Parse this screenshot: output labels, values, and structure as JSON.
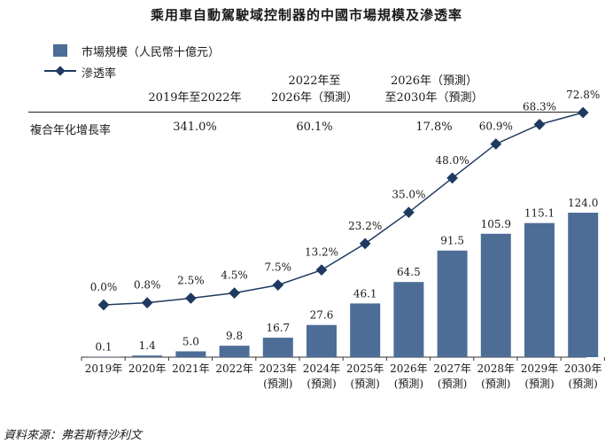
{
  "chart_data": {
    "type": "bar+line",
    "title": "乘用車自動駕駛域控制器的中國市場規模及滲透率",
    "legend": {
      "bar_label": "市場規模（人民幣十億元）",
      "line_label": "滲透率"
    },
    "categories": [
      [
        "2019年"
      ],
      [
        "2020年"
      ],
      [
        "2021年"
      ],
      [
        "2022年"
      ],
      [
        "2023年",
        "(預測)"
      ],
      [
        "2024年",
        "(預測)"
      ],
      [
        "2025年",
        "(預測)"
      ],
      [
        "2026年",
        "(預測)"
      ],
      [
        "2027年",
        "(預測)"
      ],
      [
        "2028年",
        "(預測)"
      ],
      [
        "2029年",
        "(預測)"
      ],
      [
        "2030年",
        "(預測)"
      ]
    ],
    "series": [
      {
        "name": "市場規模（人民幣十億元）",
        "type": "bar",
        "color": "#4d6d97",
        "values": [
          0.1,
          1.4,
          5.0,
          9.8,
          16.7,
          27.6,
          46.1,
          64.5,
          91.5,
          105.9,
          115.1,
          124.0
        ],
        "labels": [
          "0.1",
          "1.4",
          "5.0",
          "9.8",
          "16.7",
          "27.6",
          "46.1",
          "64.5",
          "91.5",
          "105.9",
          "115.1",
          "124.0"
        ]
      },
      {
        "name": "滲透率",
        "type": "line",
        "color": "#1f3a60",
        "values": [
          0.0,
          0.8,
          2.5,
          4.5,
          7.5,
          13.2,
          23.2,
          35.0,
          48.0,
          60.9,
          68.3,
          72.8
        ],
        "labels": [
          "0.0%",
          "0.8%",
          "2.5%",
          "4.5%",
          "7.5%",
          "13.2%",
          "23.2%",
          "35.0%",
          "48.0%",
          "60.9%",
          "68.3%",
          "72.8%"
        ]
      }
    ],
    "cagr": {
      "row_label": "複合年化增長率",
      "columns": [
        {
          "header": [
            "2019年至2022年"
          ],
          "value": "341.0%"
        },
        {
          "header": [
            "2022年至",
            "2026年（預測）"
          ],
          "value": "60.1%"
        },
        {
          "header": [
            "2026年（預測）",
            "至2030年（預測）"
          ],
          "value": "17.8%"
        }
      ]
    },
    "source": "資料來源：弗若斯特沙利文"
  }
}
